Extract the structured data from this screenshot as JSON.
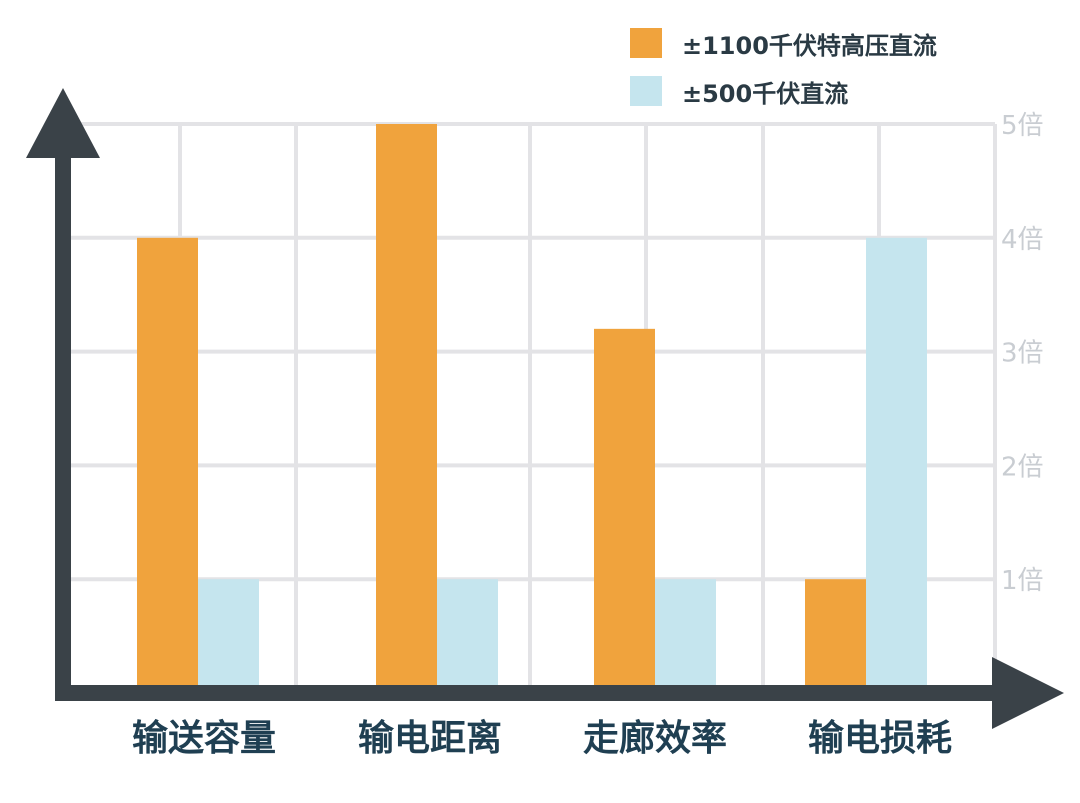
{
  "chart_data": {
    "type": "bar",
    "title": "",
    "xlabel": "",
    "ylabel": "",
    "categories": [
      "输送容量",
      "输电距离",
      "走廊效率",
      "输电损耗"
    ],
    "series": [
      {
        "name": "±1100千伏特高压直流",
        "values": [
          4,
          5,
          3.2,
          1
        ],
        "color": "#f0a33d"
      },
      {
        "name": "±500千伏直流",
        "values": [
          1,
          1,
          1,
          4
        ],
        "color": "#c5e5ee"
      }
    ],
    "ylim": [
      0,
      5
    ],
    "yticks": [
      {
        "value": 1,
        "label": "1倍"
      },
      {
        "value": 2,
        "label": "2倍"
      },
      {
        "value": 3,
        "label": "3倍"
      },
      {
        "value": 4,
        "label": "4倍"
      },
      {
        "value": 5,
        "label": "5倍"
      }
    ],
    "grid": true,
    "legend_position": "top-right",
    "y_axis_side": "right",
    "colors": {
      "axis": "#3a4248",
      "grid": "#e3e3e6",
      "category_text": "#1f3f52",
      "tick_text": "#c9cdd2"
    }
  }
}
